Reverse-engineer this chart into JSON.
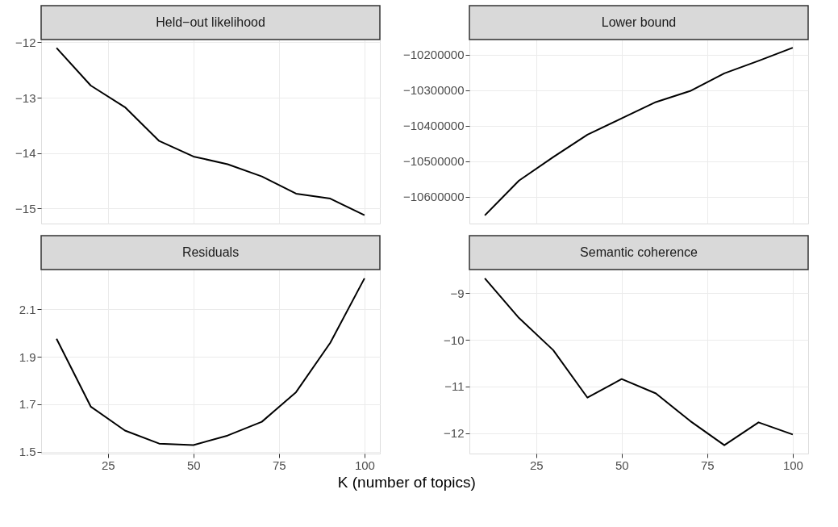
{
  "chart_data": [
    {
      "type": "line",
      "title": "Held−out likelihood",
      "x": [
        10,
        20,
        30,
        40,
        50,
        60,
        70,
        80,
        90,
        100
      ],
      "series": [
        {
          "color": "#000000",
          "values": [
            -12.1,
            -12.78,
            -13.17,
            -13.78,
            -14.06,
            -14.2,
            -14.42,
            -14.73,
            -14.82,
            -15.12
          ]
        }
      ],
      "xlim": [
        5.5,
        104.5
      ],
      "xticks": [
        25,
        50,
        75,
        100
      ],
      "ylim": [
        -15.27,
        -11.95
      ],
      "yticks": [
        -15,
        -14,
        -13,
        -12
      ],
      "grid": true,
      "tick_labels": "y"
    },
    {
      "type": "line",
      "title": "Lower bound",
      "x": [
        10,
        20,
        30,
        40,
        50,
        60,
        70,
        80,
        90,
        100
      ],
      "series": [
        {
          "color": "#000000",
          "values": [
            -10652000,
            -10554000,
            -10488000,
            -10425000,
            -10379000,
            -10333000,
            -10302000,
            -10252000,
            -10217000,
            -10180000
          ]
        }
      ],
      "xlim": [
        5.5,
        104.5
      ],
      "xticks": [
        25,
        50,
        75,
        100
      ],
      "ylim": [
        -10675000,
        -10157000
      ],
      "yticks": [
        -10600000,
        -10500000,
        -10400000,
        -10300000,
        -10200000
      ],
      "grid": true,
      "tick_labels": "y"
    },
    {
      "type": "line",
      "title": "Residuals",
      "xlabel": "K (number of topics)",
      "x": [
        10,
        20,
        30,
        40,
        50,
        60,
        70,
        80,
        90,
        100
      ],
      "series": [
        {
          "color": "#000000",
          "values": [
            1.976,
            1.69,
            1.589,
            1.534,
            1.528,
            1.568,
            1.626,
            1.751,
            1.959,
            2.231
          ]
        }
      ],
      "xlim": [
        5.5,
        104.5
      ],
      "xticks": [
        25,
        50,
        75,
        100
      ],
      "ylim": [
        1.492,
        2.268
      ],
      "yticks": [
        1.5,
        1.7,
        1.9,
        2.1
      ],
      "grid": true
    },
    {
      "type": "line",
      "title": "Semantic coherence",
      "x": [
        10,
        20,
        30,
        40,
        50,
        60,
        70,
        80,
        90,
        100
      ],
      "series": [
        {
          "color": "#000000",
          "values": [
            -8.68,
            -9.53,
            -10.22,
            -11.24,
            -10.84,
            -11.15,
            -11.74,
            -12.26,
            -11.77,
            -12.03
          ]
        }
      ],
      "xlim": [
        5.5,
        104.5
      ],
      "xticks": [
        25,
        50,
        75,
        100
      ],
      "ylim": [
        -12.44,
        -8.49
      ],
      "yticks": [
        -12,
        -11,
        -10,
        -9
      ],
      "grid": true
    }
  ]
}
